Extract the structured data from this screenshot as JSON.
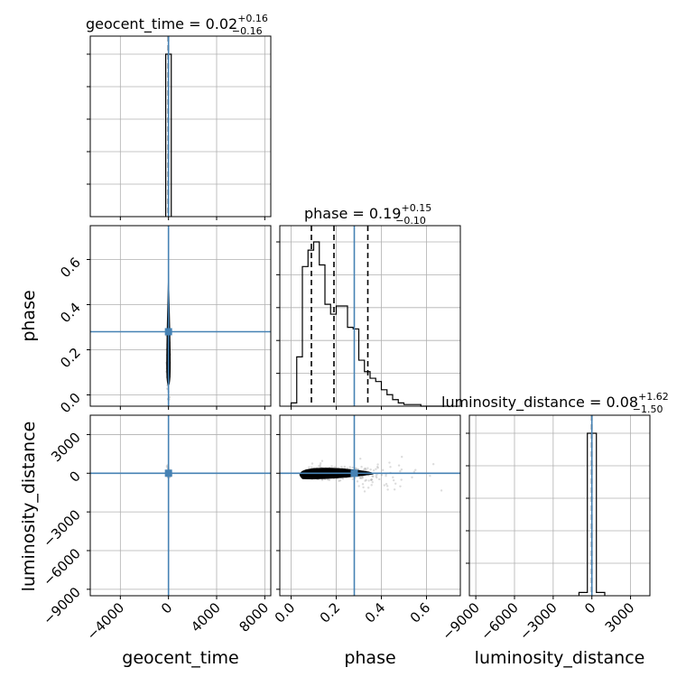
{
  "chart_data": {
    "type": "corner",
    "parameters": [
      "geocent_time",
      "phase",
      "luminosity_distance"
    ],
    "titles": [
      {
        "name": "geocent_time",
        "median": "0.02",
        "plus": "+0.16",
        "minus": "−0.16"
      },
      {
        "name": "phase",
        "median": "0.19",
        "plus": "+0.15",
        "minus": "−0.10"
      },
      {
        "name": "luminosity_distance",
        "median": "0.08",
        "plus": "+1.62",
        "minus": "−1.50"
      }
    ],
    "axis_ranges": {
      "geocent_time": [
        -6500,
        8500
      ],
      "phase": [
        -0.05,
        0.75
      ],
      "luminosity_distance": [
        -9500,
        4500
      ]
    },
    "ticks": {
      "geocent_time": {
        "values": [
          -4000,
          0,
          4000,
          8000
        ],
        "labels": [
          "−4000",
          "0",
          "4000",
          "8000"
        ]
      },
      "phase_x": {
        "values": [
          0.0,
          0.2,
          0.4,
          0.6
        ],
        "labels": [
          "0.0",
          "0.2",
          "0.4",
          "0.6"
        ]
      },
      "phase_y": {
        "values": [
          0.0,
          0.2,
          0.4,
          0.6
        ],
        "labels": [
          "0.0",
          "0.2",
          "0.4",
          "0.6"
        ]
      },
      "luminosity_distance_x": {
        "values": [
          -9000,
          -6000,
          -3000,
          0,
          3000
        ],
        "labels": [
          "−9000",
          "−6000",
          "−3000",
          "0",
          "3000"
        ]
      },
      "luminosity_distance_y": {
        "values": [
          -9000,
          -6000,
          -3000,
          0,
          3000
        ],
        "labels": [
          "−9000",
          "−6000",
          "−3000",
          "0",
          "3000"
        ]
      }
    },
    "truths": {
      "geocent_time": 0,
      "phase": 0.28,
      "luminosity_distance": 0
    },
    "quantiles": {
      "geocent_time": [
        -0.14,
        0.02,
        0.18
      ],
      "phase": [
        0.09,
        0.19,
        0.34
      ],
      "luminosity_distance": [
        -1.42,
        0.08,
        1.7
      ]
    },
    "hist_geocent_time": {
      "edges": [
        -230,
        0,
        230
      ],
      "counts": [
        1.0,
        1.0
      ]
    },
    "hist_luminosity_distance": {
      "edges": [
        -1000,
        -350,
        0,
        350,
        1000
      ],
      "counts": [
        0.02,
        1.0,
        1.0,
        0.02
      ]
    },
    "hist_phase": {
      "edges": [
        0.0,
        0.025,
        0.05,
        0.075,
        0.1,
        0.125,
        0.15,
        0.175,
        0.2,
        0.225,
        0.25,
        0.275,
        0.3,
        0.325,
        0.35,
        0.375,
        0.4,
        0.425,
        0.45,
        0.475,
        0.5,
        0.525,
        0.55,
        0.575,
        0.6,
        0.625,
        0.65,
        0.675,
        0.7
      ],
      "counts": [
        0.02,
        0.3,
        0.85,
        0.95,
        1.0,
        0.86,
        0.62,
        0.56,
        0.61,
        0.61,
        0.48,
        0.47,
        0.28,
        0.21,
        0.17,
        0.15,
        0.1,
        0.07,
        0.04,
        0.02,
        0.01,
        0.01,
        0.01,
        0.0,
        0.0,
        0.0,
        0.0,
        0.0
      ]
    },
    "grid": true
  }
}
